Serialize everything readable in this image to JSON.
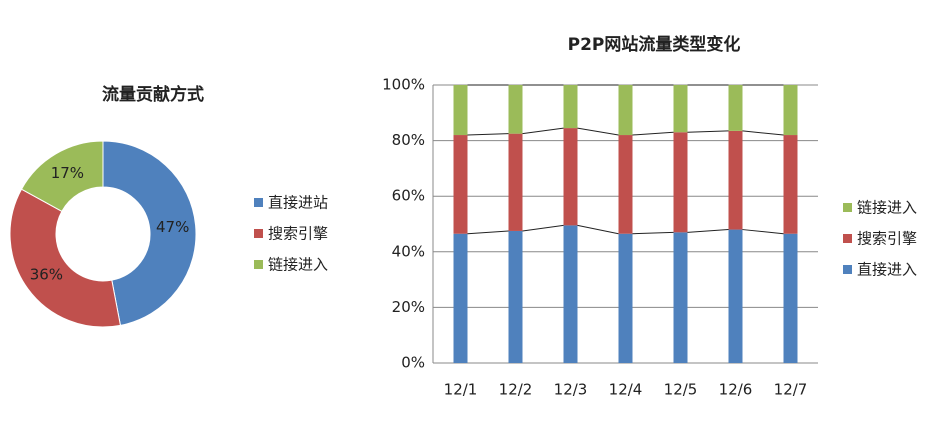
{
  "chart_data": [
    {
      "type": "donut",
      "title": "流量贡献方式",
      "categories": [
        "直接进站",
        "搜索引擎",
        "链接进入"
      ],
      "values": [
        47,
        36,
        17
      ],
      "value_labels": [
        "47%",
        "36%",
        "17%"
      ],
      "colors": [
        "#4f81bd",
        "#c0504d",
        "#9bbb59"
      ]
    },
    {
      "type": "stacked_bar",
      "title": "P2P网站流量类型变化",
      "categories": [
        "12/1",
        "12/2",
        "12/3",
        "12/4",
        "12/5",
        "12/6",
        "12/7"
      ],
      "series": [
        {
          "name": "直接进入",
          "color": "#4f81bd",
          "values": [
            46.5,
            47.5,
            49.5,
            46.5,
            47,
            48,
            46.5
          ]
        },
        {
          "name": "搜索引擎",
          "color": "#c0504d",
          "values": [
            35.5,
            35,
            35,
            35.5,
            36,
            35.5,
            35.5
          ]
        },
        {
          "name": "链接进入",
          "color": "#9bbb59",
          "values": [
            18,
            17.5,
            15.5,
            18,
            17,
            16.5,
            18
          ]
        }
      ],
      "ylim": [
        0,
        100
      ],
      "yticks": [
        {
          "value": 0,
          "label": "0%"
        },
        {
          "value": 20,
          "label": "20%"
        },
        {
          "value": 40,
          "label": "40%"
        },
        {
          "value": 60,
          "label": "60%"
        },
        {
          "value": 80,
          "label": "80%"
        },
        {
          "value": 100,
          "label": "100%"
        }
      ],
      "grid": true
    }
  ]
}
